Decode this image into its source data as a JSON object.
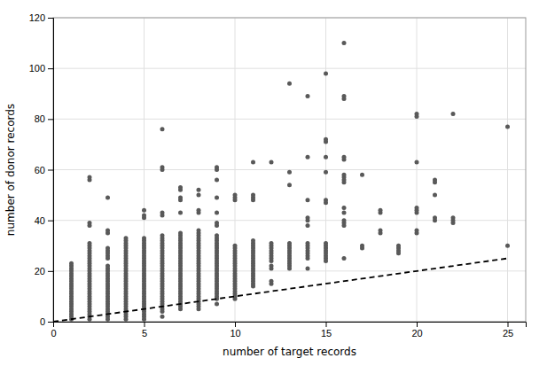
{
  "chart_data": {
    "type": "scatter",
    "xlabel": "number of target records",
    "ylabel": "number of donor records",
    "xlim": [
      0,
      26
    ],
    "ylim": [
      0,
      120
    ],
    "xticks": [
      0,
      5,
      10,
      15,
      20,
      25
    ],
    "yticks": [
      0,
      20,
      40,
      60,
      80,
      100,
      120
    ],
    "grid": true,
    "series": [
      {
        "type": "scatter",
        "color": "#595959",
        "x": [
          1,
          1,
          1,
          1,
          1,
          1,
          1,
          1,
          1,
          1,
          1,
          1,
          1,
          1,
          1,
          1,
          1,
          1,
          1,
          1,
          1,
          1,
          1,
          2,
          2,
          2,
          2,
          2,
          2,
          2,
          2,
          2,
          2,
          2,
          2,
          2,
          2,
          2,
          2,
          2,
          2,
          2,
          2,
          2,
          2,
          2,
          2,
          2,
          2,
          2,
          2,
          2,
          2,
          2,
          2,
          2,
          2,
          2,
          3,
          3,
          3,
          3,
          3,
          3,
          3,
          3,
          3,
          3,
          3,
          3,
          3,
          3,
          3,
          3,
          3,
          3,
          3,
          3,
          3,
          3,
          3,
          3,
          3,
          3,
          3,
          3,
          3,
          3,
          4,
          4,
          4,
          4,
          4,
          4,
          4,
          4,
          4,
          4,
          4,
          4,
          4,
          4,
          4,
          4,
          4,
          4,
          4,
          4,
          4,
          4,
          4,
          4,
          4,
          4,
          4,
          4,
          4,
          4,
          4,
          4,
          4,
          5,
          5,
          5,
          5,
          5,
          5,
          5,
          5,
          5,
          5,
          5,
          5,
          5,
          5,
          5,
          5,
          5,
          5,
          5,
          5,
          5,
          5,
          5,
          5,
          5,
          5,
          5,
          5,
          5,
          5,
          5,
          5,
          5,
          5,
          5,
          5,
          6,
          6,
          6,
          6,
          6,
          6,
          6,
          6,
          6,
          6,
          6,
          6,
          6,
          6,
          6,
          6,
          6,
          6,
          6,
          6,
          6,
          6,
          6,
          6,
          6,
          6,
          6,
          6,
          6,
          6,
          6,
          6,
          6,
          6,
          6,
          6,
          6,
          7,
          7,
          7,
          7,
          7,
          7,
          7,
          7,
          7,
          7,
          7,
          7,
          7,
          7,
          7,
          7,
          7,
          7,
          7,
          7,
          7,
          7,
          7,
          7,
          7,
          7,
          7,
          7,
          7,
          7,
          7,
          7,
          7,
          7,
          7,
          7,
          8,
          8,
          8,
          8,
          8,
          8,
          8,
          8,
          8,
          8,
          8,
          8,
          8,
          8,
          8,
          8,
          8,
          8,
          8,
          8,
          8,
          8,
          8,
          8,
          8,
          8,
          8,
          8,
          8,
          8,
          8,
          8,
          8,
          8,
          8,
          8,
          9,
          9,
          9,
          9,
          9,
          9,
          9,
          9,
          9,
          9,
          9,
          9,
          9,
          9,
          9,
          9,
          9,
          9,
          9,
          9,
          9,
          9,
          9,
          9,
          9,
          9,
          9,
          9,
          9,
          9,
          9,
          9,
          9,
          9,
          10,
          10,
          10,
          10,
          10,
          10,
          10,
          10,
          10,
          10,
          10,
          10,
          10,
          10,
          10,
          10,
          10,
          10,
          10,
          10,
          10,
          10,
          10,
          10,
          10,
          11,
          11,
          11,
          11,
          11,
          11,
          11,
          11,
          11,
          11,
          11,
          11,
          11,
          11,
          11,
          11,
          11,
          11,
          11,
          11,
          11,
          11,
          11,
          12,
          12,
          12,
          12,
          12,
          12,
          12,
          12,
          12,
          12,
          12,
          12,
          12,
          13,
          13,
          13,
          13,
          13,
          13,
          13,
          13,
          13,
          13,
          13,
          13,
          13,
          13,
          14,
          14,
          14,
          14,
          14,
          14,
          14,
          14,
          14,
          14,
          14,
          14,
          14,
          14,
          15,
          15,
          15,
          15,
          15,
          15,
          15,
          15,
          15,
          15,
          15,
          15,
          15,
          15,
          15,
          16,
          16,
          16,
          16,
          16,
          16,
          16,
          16,
          16,
          16,
          16,
          16,
          16,
          16,
          16,
          17,
          17,
          17,
          18,
          18,
          18,
          18,
          19,
          19,
          19,
          19,
          20,
          20,
          20,
          20,
          20,
          20,
          20,
          20,
          21,
          21,
          21,
          21,
          21,
          22,
          22,
          22,
          22,
          25,
          25
        ],
        "values": [
          1,
          2,
          3,
          4,
          5,
          6,
          7,
          8,
          9,
          10,
          11,
          12,
          13,
          14,
          15,
          16,
          17,
          18,
          19,
          20,
          21,
          22,
          23,
          1,
          2,
          3,
          4,
          5,
          6,
          7,
          8,
          9,
          10,
          11,
          12,
          13,
          14,
          15,
          16,
          17,
          18,
          19,
          20,
          21,
          22,
          23,
          24,
          25,
          26,
          27,
          28,
          29,
          30,
          31,
          38,
          39,
          56,
          57,
          1,
          2,
          3,
          4,
          5,
          6,
          7,
          8,
          9,
          10,
          11,
          12,
          13,
          14,
          15,
          16,
          17,
          18,
          19,
          20,
          21,
          22,
          25,
          26,
          27,
          28,
          29,
          35,
          36,
          49,
          1,
          2,
          3,
          4,
          5,
          6,
          7,
          8,
          9,
          10,
          11,
          12,
          13,
          14,
          15,
          16,
          17,
          18,
          19,
          20,
          21,
          22,
          23,
          24,
          25,
          26,
          27,
          28,
          29,
          30,
          31,
          32,
          33,
          1,
          2,
          3,
          4,
          5,
          6,
          7,
          8,
          9,
          10,
          11,
          12,
          13,
          14,
          15,
          16,
          17,
          18,
          19,
          20,
          21,
          22,
          23,
          24,
          25,
          26,
          27,
          28,
          29,
          30,
          31,
          32,
          33,
          41,
          42,
          44,
          2,
          4,
          5,
          6,
          7,
          8,
          9,
          10,
          11,
          12,
          13,
          14,
          15,
          16,
          17,
          18,
          19,
          20,
          21,
          22,
          23,
          24,
          25,
          26,
          27,
          28,
          29,
          30,
          31,
          32,
          33,
          34,
          42,
          43,
          60,
          61,
          76,
          5,
          6,
          7,
          8,
          9,
          10,
          11,
          12,
          13,
          14,
          15,
          16,
          17,
          18,
          19,
          20,
          21,
          22,
          23,
          24,
          25,
          26,
          27,
          28,
          29,
          30,
          31,
          32,
          33,
          34,
          35,
          43,
          48,
          49,
          52,
          53,
          5,
          6,
          7,
          8,
          9,
          10,
          11,
          12,
          13,
          14,
          15,
          16,
          17,
          18,
          19,
          20,
          21,
          22,
          23,
          24,
          25,
          26,
          27,
          28,
          29,
          30,
          31,
          32,
          33,
          34,
          35,
          36,
          43,
          44,
          50,
          52,
          7,
          9,
          10,
          11,
          12,
          13,
          14,
          15,
          16,
          17,
          18,
          19,
          20,
          21,
          22,
          23,
          24,
          25,
          26,
          27,
          28,
          29,
          30,
          31,
          32,
          33,
          34,
          38,
          39,
          43,
          49,
          56,
          60,
          61,
          9,
          10,
          11,
          12,
          13,
          14,
          15,
          16,
          17,
          18,
          19,
          20,
          21,
          22,
          23,
          24,
          25,
          26,
          27,
          28,
          29,
          30,
          48,
          49,
          50,
          14,
          15,
          16,
          17,
          18,
          19,
          20,
          21,
          22,
          23,
          24,
          25,
          26,
          27,
          28,
          29,
          30,
          31,
          32,
          48,
          49,
          50,
          63,
          15,
          16,
          21,
          22,
          24,
          25,
          26,
          27,
          28,
          29,
          30,
          31,
          63,
          21,
          22,
          23,
          24,
          25,
          26,
          27,
          28,
          29,
          30,
          31,
          54,
          59,
          94,
          21,
          25,
          26,
          27,
          28,
          29,
          30,
          31,
          38,
          40,
          41,
          48,
          65,
          89,
          24,
          25,
          26,
          27,
          28,
          29,
          30,
          31,
          47,
          48,
          59,
          65,
          71,
          72,
          98,
          25,
          38,
          39,
          40,
          43,
          45,
          55,
          56,
          57,
          58,
          64,
          65,
          88,
          89,
          110,
          29,
          30,
          58,
          35,
          36,
          43,
          44,
          27,
          28,
          29,
          30,
          35,
          36,
          43,
          44,
          45,
          63,
          81,
          82,
          40,
          41,
          50,
          55,
          56,
          39,
          40,
          41,
          82,
          30,
          77
        ]
      },
      {
        "type": "line",
        "line_style": "dashed",
        "color": "#000000",
        "x": [
          0,
          25
        ],
        "values": [
          0,
          25
        ]
      }
    ]
  }
}
